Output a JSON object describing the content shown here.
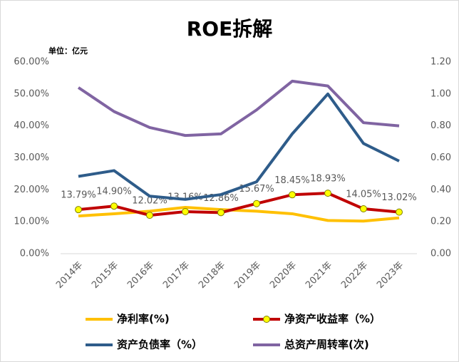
{
  "chart_data": {
    "type": "line",
    "title": "ROE拆解",
    "unit_label": "单位：亿元",
    "categories": [
      "2014年",
      "2015年",
      "2016年",
      "2017年",
      "2018年",
      "2019年",
      "2020年",
      "2021年",
      "2022年",
      "2023年"
    ],
    "ylim": [
      0,
      60
    ],
    "yticks": [
      {
        "value": 0,
        "label": "0.00%"
      },
      {
        "value": 10,
        "label": "10.00%"
      },
      {
        "value": 20,
        "label": "20.00%"
      },
      {
        "value": 30,
        "label": "30.00%"
      },
      {
        "value": 40,
        "label": "40.00%"
      },
      {
        "value": 50,
        "label": "50.00%"
      },
      {
        "value": 60,
        "label": "60.00%"
      }
    ],
    "y2lim": [
      0,
      1.2
    ],
    "y2ticks": [
      {
        "value": 0,
        "label": "0.00"
      },
      {
        "value": 0.2,
        "label": "0.20"
      },
      {
        "value": 0.4,
        "label": "0.40"
      },
      {
        "value": 0.6,
        "label": "0.60"
      },
      {
        "value": 0.8,
        "label": "0.80"
      },
      {
        "value": 1.0,
        "label": "1.00"
      },
      {
        "value": 1.2,
        "label": "1.20"
      }
    ],
    "legend": "bottom",
    "series": [
      {
        "name": "净利率(%)",
        "color": "#ffc000",
        "values": [
          11.8,
          12.5,
          13.3,
          14.5,
          13.8,
          13.3,
          12.5,
          10.4,
          10.2,
          11.2
        ]
      },
      {
        "name": "净资产收益率（%）",
        "color": "#c00000",
        "marker_color": "#ffff00",
        "values": [
          13.79,
          14.9,
          12.02,
          13.16,
          12.86,
          15.67,
          18.45,
          18.93,
          14.05,
          13.02
        ],
        "value_labels": [
          "13.79%",
          "14.90%",
          "12.02%",
          "13.16%",
          "12.86%",
          "15.67%",
          "18.45%",
          "18.93%",
          "14.05%",
          "13.02%"
        ]
      },
      {
        "name": "资产负债率（%）",
        "color": "#2e5c8a",
        "values": [
          24.2,
          26.0,
          18.0,
          17.0,
          18.5,
          22.5,
          37.5,
          50.0,
          34.5,
          29.0
        ]
      },
      {
        "name": "总资产周转率(次)",
        "color": "#8064a2",
        "axis": "y2",
        "values": [
          1.04,
          0.89,
          0.79,
          0.74,
          0.75,
          0.9,
          1.08,
          1.05,
          0.82,
          0.8
        ]
      }
    ]
  }
}
